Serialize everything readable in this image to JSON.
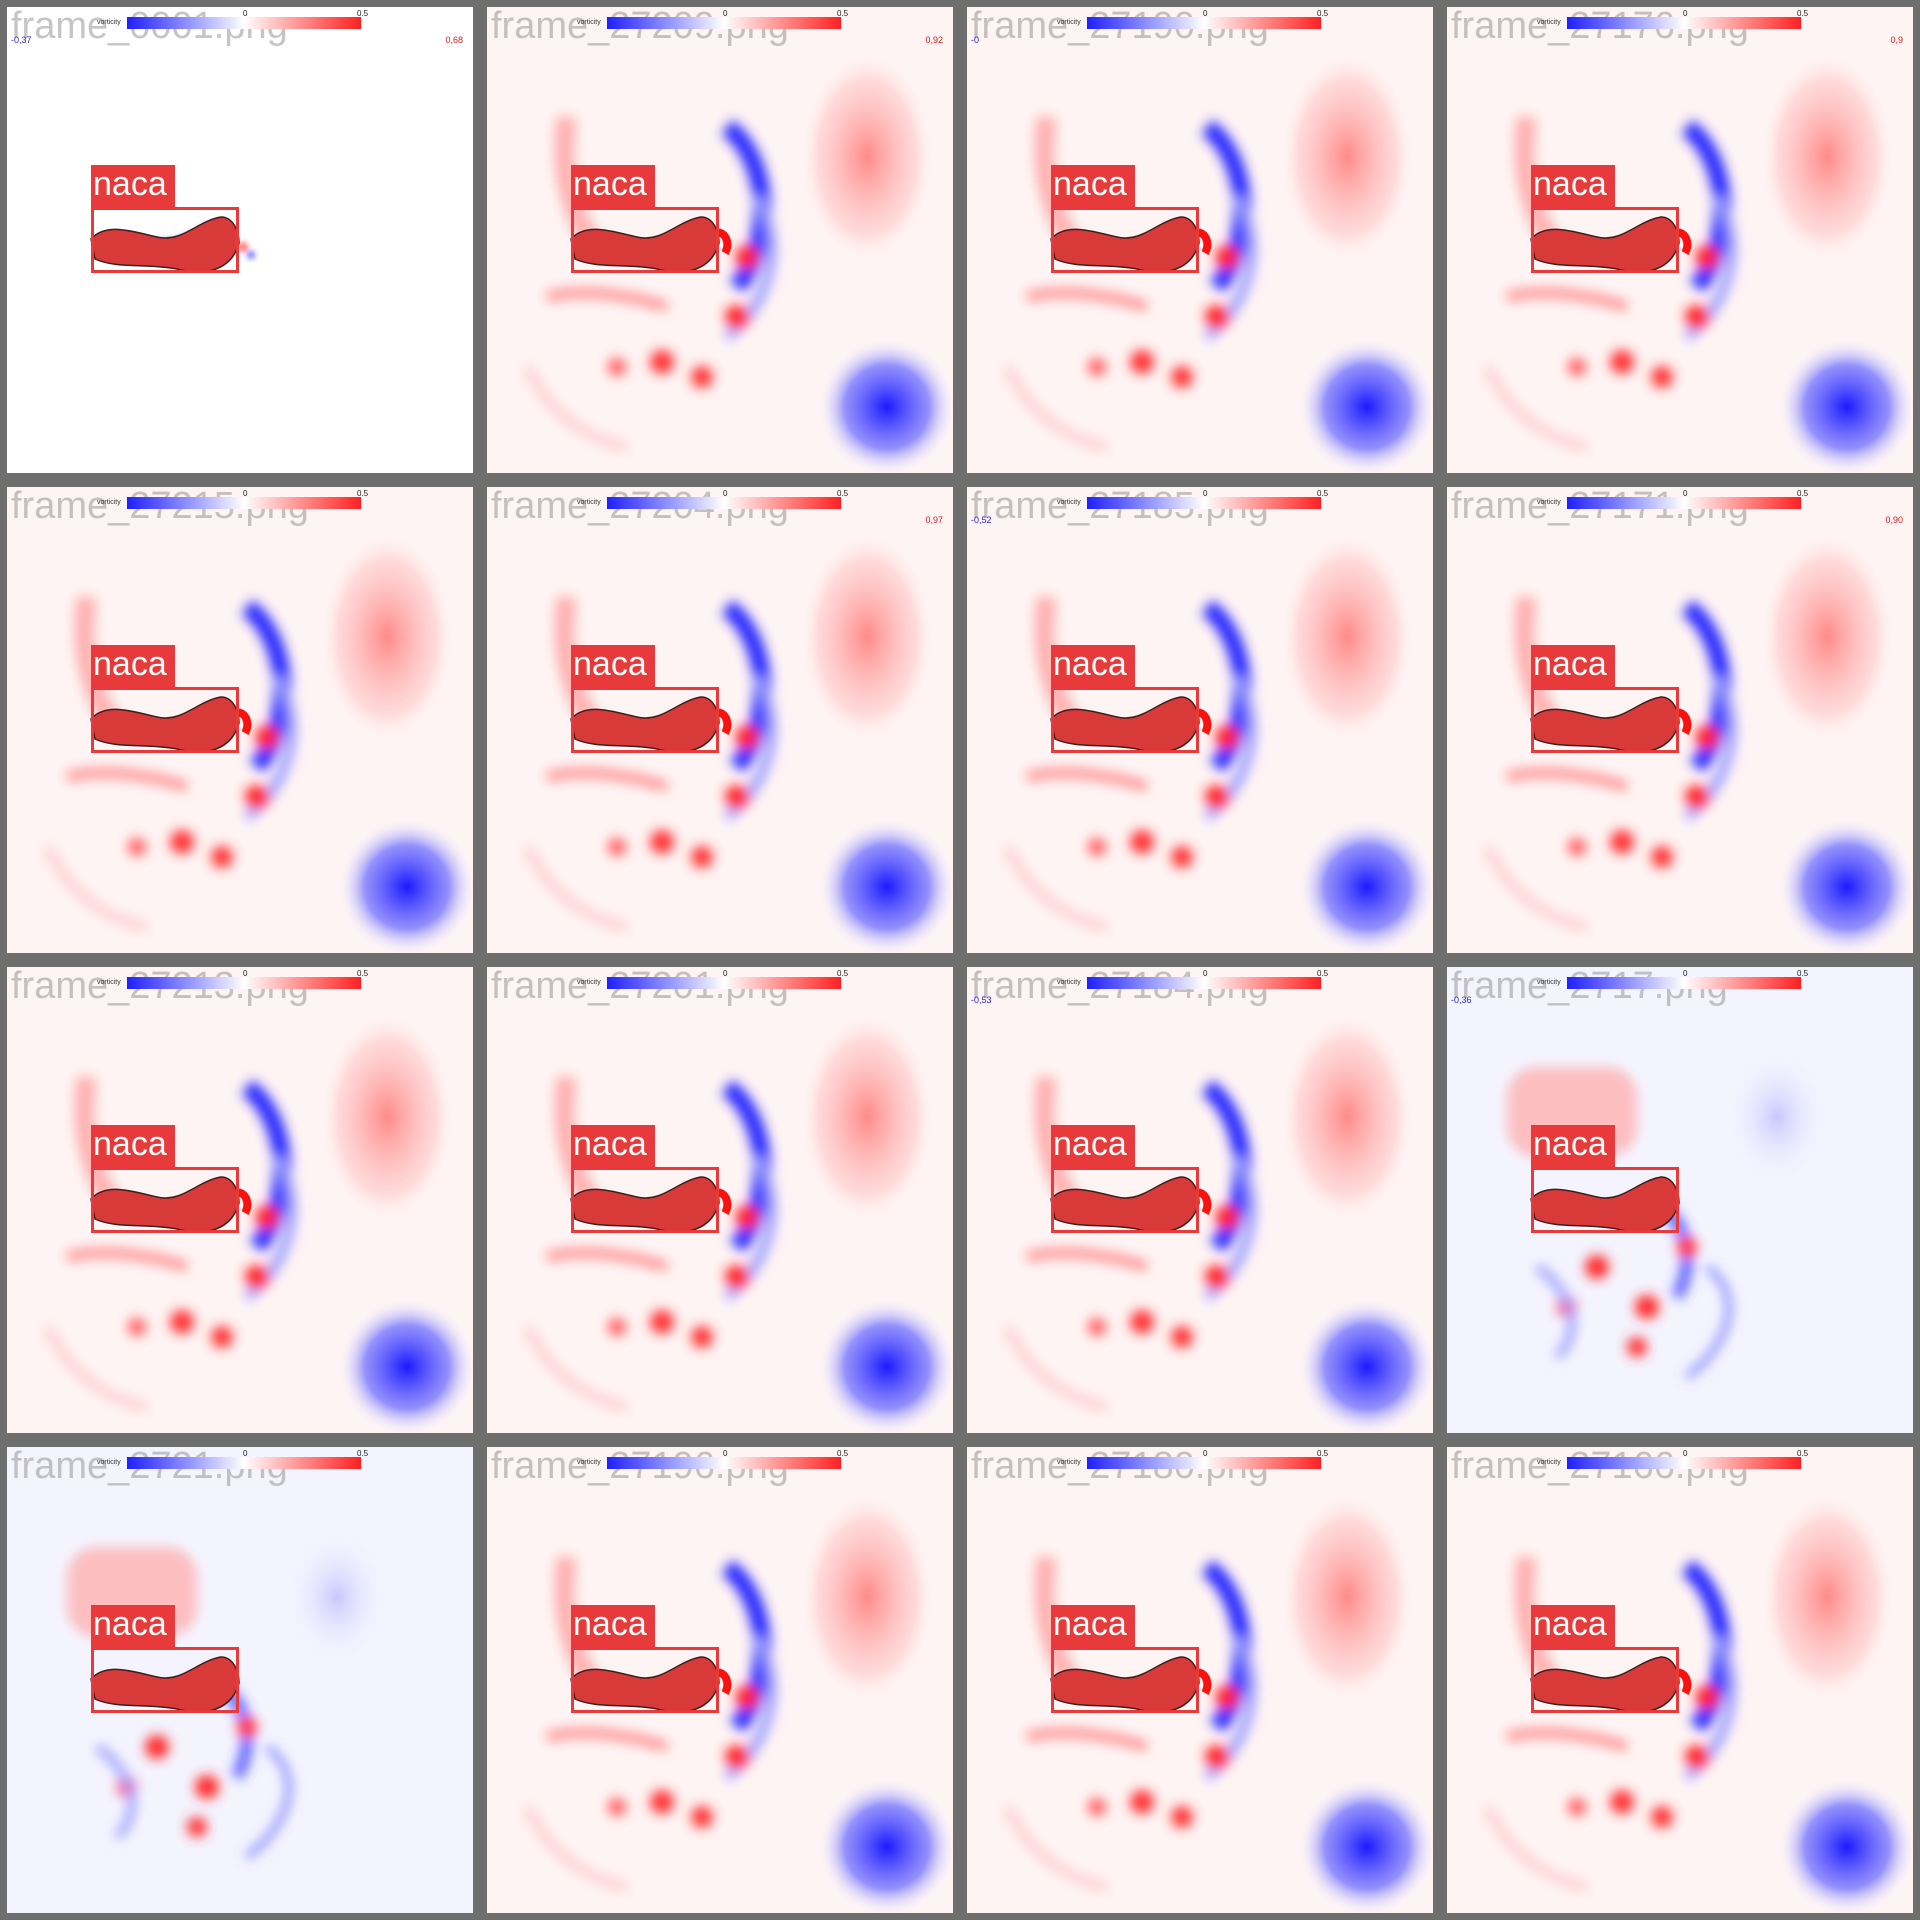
{
  "colors": {
    "positive": "#ff2020",
    "negative": "#1f1fff",
    "frame": "#6e6e6e",
    "label_bg": "#e83a3a"
  },
  "colorbar": {
    "title": "vorticity",
    "tick_zero": "0",
    "tick_max": "0.5"
  },
  "detection": {
    "label": "naca"
  },
  "tiles": [
    {
      "filename": "frame_0001.png",
      "vmin": "-0,37",
      "vmax": "0,68",
      "field": "initial"
    },
    {
      "filename": "frame_27209.png",
      "vmin": "",
      "vmax": "0,92",
      "field": "developed"
    },
    {
      "filename": "frame_27190.png",
      "vmin": "-0",
      "vmax": "",
      "field": "developed"
    },
    {
      "filename": "frame_27176.png",
      "vmin": "",
      "vmax": "0,9",
      "field": "developed"
    },
    {
      "filename": "frame_27215.png",
      "vmin": "",
      "vmax": "",
      "field": "developed"
    },
    {
      "filename": "frame_27204.png",
      "vmin": "",
      "vmax": "0,97",
      "field": "developed"
    },
    {
      "filename": "frame_27185.png",
      "vmin": "-0,52",
      "vmax": "",
      "field": "developed"
    },
    {
      "filename": "frame_27171.png",
      "vmin": "",
      "vmax": "0,90",
      "field": "developed"
    },
    {
      "filename": "frame_27213.png",
      "vmin": "",
      "vmax": "",
      "field": "developed"
    },
    {
      "filename": "frame_27201.png",
      "vmin": "",
      "vmax": "",
      "field": "developed"
    },
    {
      "filename": "frame_27184.png",
      "vmin": "-0,53",
      "vmax": "",
      "field": "developed"
    },
    {
      "filename": "frame_2717.png",
      "vmin": "-0,36",
      "vmax": "",
      "field": "early"
    },
    {
      "filename": "frame_2721.png",
      "vmin": "",
      "vmax": "",
      "field": "early"
    },
    {
      "filename": "frame_27196.png",
      "vmin": "",
      "vmax": "",
      "field": "developed"
    },
    {
      "filename": "frame_27180.png",
      "vmin": "",
      "vmax": "",
      "field": "developed"
    },
    {
      "filename": "frame_27166.png",
      "vmin": "",
      "vmax": "",
      "field": "developed"
    }
  ]
}
